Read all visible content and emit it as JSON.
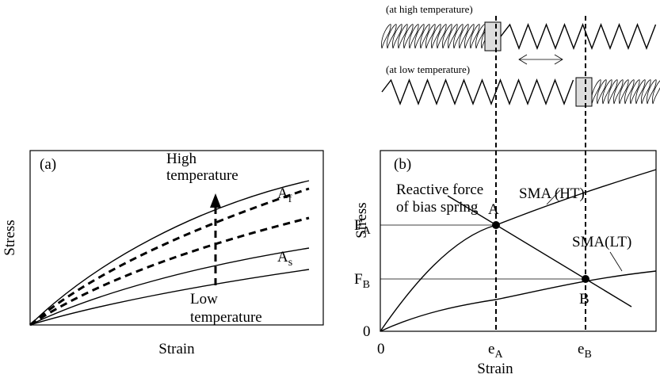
{
  "panel_a": {
    "label": "(a)",
    "high_line1": "High",
    "high_line2": "temperature",
    "af": {
      "main": "A",
      "sub": "f"
    },
    "as": {
      "main": "A",
      "sub": "s"
    },
    "low_line1": "Low",
    "low_line2": "temperature",
    "y_label": "Stress",
    "x_label": "Strain"
  },
  "panel_b": {
    "label": "(b)",
    "sma_ht": "SMA (HT)",
    "sma_lt": "SMA(LT)",
    "bias_line1": "Reactive force",
    "bias_line2": "of bias spring",
    "point_a": "A",
    "point_b": "B",
    "fa": {
      "main": "F",
      "sub": "A"
    },
    "fb": {
      "main": "F",
      "sub": "B"
    },
    "y_zero": "0",
    "x_zero": "0",
    "ea": {
      "main": "e",
      "sub": "A"
    },
    "eb": {
      "main": "e",
      "sub": "B"
    },
    "y_label": "Stress",
    "x_label": "Strain",
    "spring_high": "(at high temperature)",
    "spring_low": "(at low temperature)"
  }
}
